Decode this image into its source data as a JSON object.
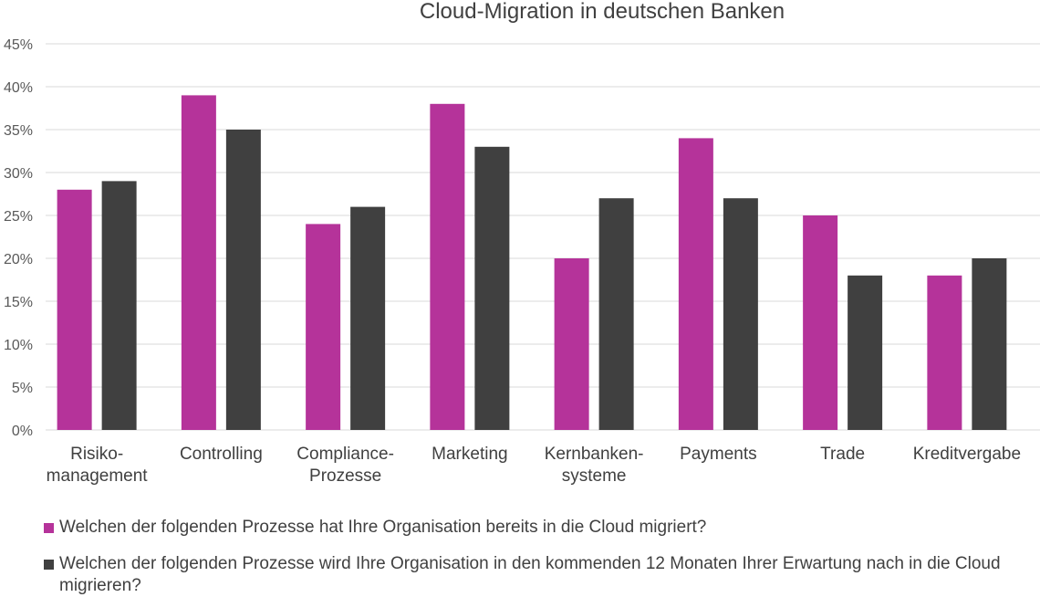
{
  "chart_data": {
    "type": "bar",
    "title": "Cloud-Migration in deutschen Banken",
    "categories": [
      [
        "Risiko-",
        "management"
      ],
      [
        "Controlling"
      ],
      [
        "Compliance-",
        "Prozesse"
      ],
      [
        "Marketing"
      ],
      [
        "Kernbanken-",
        "systeme"
      ],
      [
        "Payments"
      ],
      [
        "Trade"
      ],
      [
        "Kreditvergabe"
      ]
    ],
    "series": [
      {
        "name": "Welchen der folgenden Prozesse hat Ihre Organisation bereits in die Cloud migriert?",
        "color": "#b5339a",
        "values": [
          28,
          39,
          24,
          38,
          20,
          34,
          25,
          18
        ]
      },
      {
        "name": "Welchen der folgenden Prozesse wird Ihre Organisation in den kommenden 12 Monaten Ihrer Erwartung nach in die Cloud migrieren?",
        "color": "#404040",
        "values": [
          29,
          35,
          26,
          33,
          27,
          27,
          18,
          20
        ]
      }
    ],
    "ylim": [
      0,
      45
    ],
    "yticks": [
      "0%",
      "5%",
      "10%",
      "15%",
      "20%",
      "25%",
      "30%",
      "35%",
      "40%",
      "45%"
    ],
    "grid": true,
    "legend_position": "bottom"
  }
}
